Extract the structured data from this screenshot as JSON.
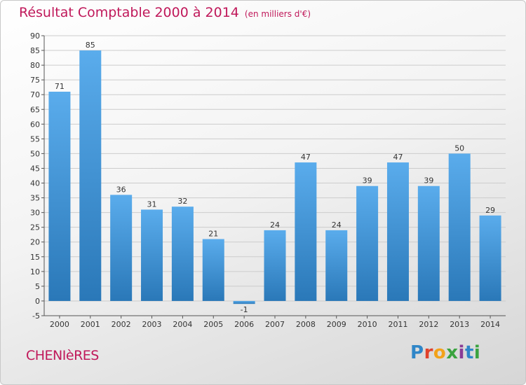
{
  "header": {
    "title": "Résultat Comptable 2000 à 2014",
    "subtitle": "(en milliers d'€)"
  },
  "footer": {
    "town": "CHENIèRES",
    "logo": [
      "P",
      "r",
      "o",
      "x",
      "i",
      "t",
      "i"
    ]
  },
  "colors": {
    "title": "#c0185a",
    "bar_top": "#5aacec",
    "bar_bottom": "#2a78b8",
    "grid": "#cccccc"
  },
  "chart_data": {
    "type": "bar",
    "title": "Résultat Comptable 2000 à 2014",
    "subtitle": "(en milliers d'€)",
    "categories": [
      "2000",
      "2001",
      "2002",
      "2003",
      "2004",
      "2005",
      "2006",
      "2007",
      "2008",
      "2009",
      "2010",
      "2011",
      "2012",
      "2013",
      "2014"
    ],
    "values": [
      71,
      85,
      36,
      31,
      32,
      21,
      -1,
      24,
      47,
      24,
      39,
      47,
      39,
      50,
      29
    ],
    "ylim": [
      -5,
      90
    ],
    "yticks": [
      -5,
      0,
      5,
      10,
      15,
      20,
      25,
      30,
      35,
      40,
      45,
      50,
      55,
      60,
      65,
      70,
      75,
      80,
      85,
      90
    ],
    "grid": true,
    "legend": "none"
  }
}
